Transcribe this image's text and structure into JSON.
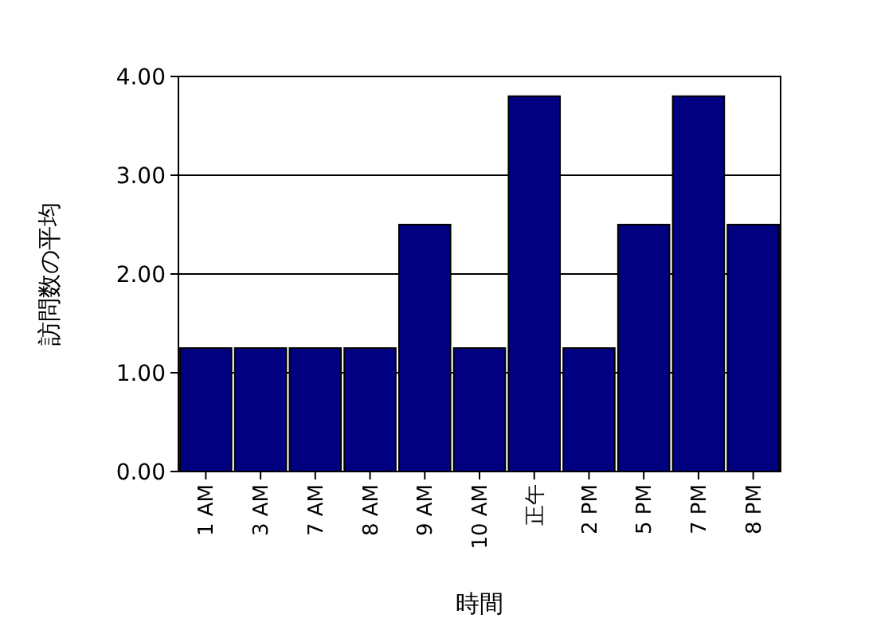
{
  "chart_data": {
    "type": "bar",
    "xlabel": "時間",
    "ylabel": "訪問数の平均",
    "categories": [
      "1 AM",
      "3 AM",
      "7 AM",
      "8 AM",
      "9 AM",
      "10 AM",
      "正午",
      "2 PM",
      "5 PM",
      "7 PM",
      "8 PM"
    ],
    "values": [
      1.25,
      1.25,
      1.25,
      1.25,
      2.5,
      1.25,
      3.8,
      1.25,
      2.5,
      3.8,
      2.5
    ],
    "color": "#000080",
    "ylim": [
      0,
      4
    ],
    "yticks": [
      {
        "value": 0,
        "label": "0.00"
      },
      {
        "value": 1,
        "label": "1.00"
      },
      {
        "value": 2,
        "label": "2.00"
      },
      {
        "value": 3,
        "label": "3.00"
      },
      {
        "value": 4,
        "label": "4.00"
      }
    ],
    "grid": "y"
  }
}
